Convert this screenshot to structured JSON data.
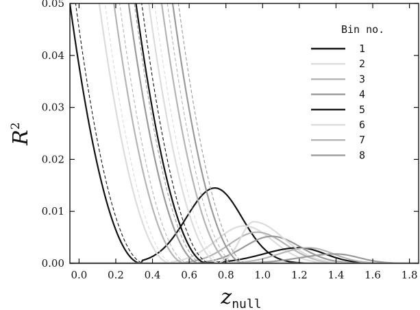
{
  "chart_data": {
    "type": "line",
    "x_range": [
      -0.05,
      1.85
    ],
    "y_range": [
      0.0,
      0.05
    ],
    "x_ticks": [
      "0.0",
      "0.2",
      "0.4",
      "0.6",
      "0.8",
      "1.0",
      "1.2",
      "1.4",
      "1.6",
      "1.8"
    ],
    "y_ticks": [
      "0.00",
      "0.01",
      "0.02",
      "0.03",
      "0.04",
      "0.05"
    ],
    "x_tick_values": [
      0.0,
      0.2,
      0.4,
      0.6,
      0.8,
      1.0,
      1.2,
      1.4,
      1.6,
      1.8
    ],
    "y_tick_values": [
      0.0,
      0.01,
      0.02,
      0.03,
      0.04,
      0.05
    ],
    "xlabel": "z",
    "xlabel_sub": "null",
    "ylabel": "R",
    "ylabel_sup": "2",
    "legend": {
      "title": "Bin no.",
      "position": "top-right",
      "entries": [
        "1",
        "2",
        "3",
        "4",
        "5",
        "6",
        "7",
        "8"
      ]
    },
    "series": [
      {
        "name": "1",
        "color": "#111111",
        "z_true": 0.34,
        "falloff_peak": 0.0145,
        "peak_x": 0.74,
        "right_width": 0.38
      },
      {
        "name": "2",
        "color": "#dcdcdc",
        "z_true": 0.5,
        "falloff_peak": 0.0072,
        "peak_x": 0.9,
        "right_width": 0.4
      },
      {
        "name": "3",
        "color": "#b4b4b4",
        "z_true": 0.58,
        "falloff_peak": 0.006,
        "peak_x": 0.97,
        "right_width": 0.4
      },
      {
        "name": "4",
        "color": "#999999",
        "z_true": 0.66,
        "falloff_peak": 0.0052,
        "peak_x": 1.05,
        "right_width": 0.4
      },
      {
        "name": "5",
        "color": "#111111",
        "z_true": 0.7,
        "falloff_peak": 0.003,
        "peak_x": 1.2,
        "right_width": 0.36
      },
      {
        "name": "6",
        "color": "#dcdcdc",
        "z_true": 0.77,
        "falloff_peak": 0.008,
        "peak_x": 0.95,
        "right_width": 0.42
      },
      {
        "name": "7",
        "color": "#b4b4b4",
        "z_true": 0.84,
        "falloff_peak": 0.003,
        "peak_x": 1.25,
        "right_width": 0.35
      },
      {
        "name": "8",
        "color": "#999999",
        "z_true": 0.9,
        "falloff_peak": 0.0018,
        "peak_x": 1.4,
        "right_width": 0.32
      }
    ]
  }
}
